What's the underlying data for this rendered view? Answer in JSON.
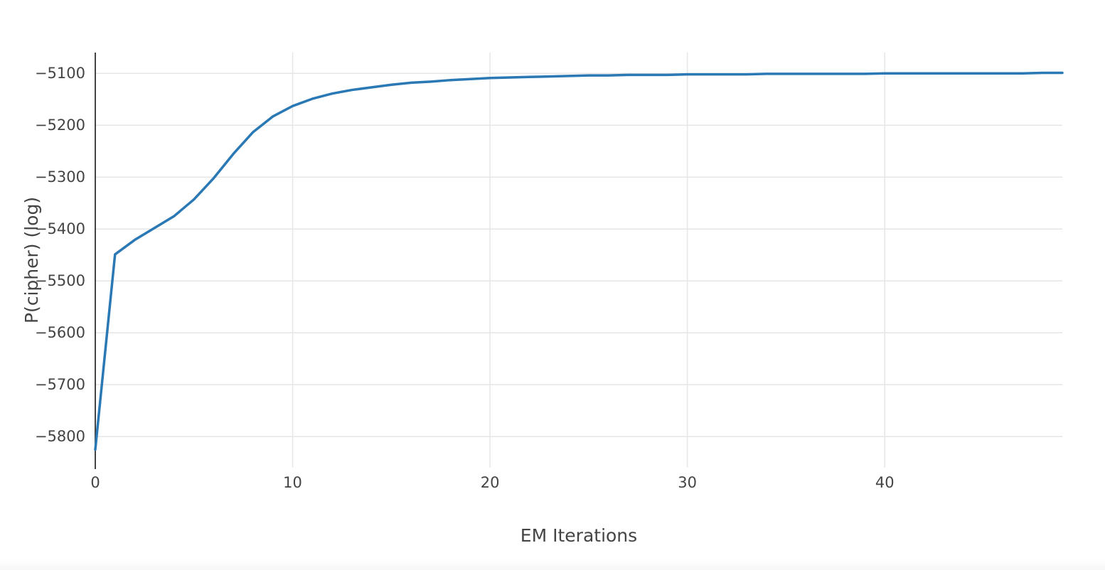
{
  "chart_data": {
    "type": "line",
    "title": "",
    "xlabel": "EM Iterations",
    "ylabel": "P(cipher) (log)",
    "xlim": [
      0,
      49
    ],
    "ylim": [
      -5860,
      -5060
    ],
    "x_ticks": [
      0,
      10,
      20,
      30,
      40
    ],
    "y_ticks": [
      -5100,
      -5200,
      -5300,
      -5400,
      -5500,
      -5600,
      -5700,
      -5800
    ],
    "x_tick_labels": [
      "0",
      "10",
      "20",
      "30",
      "40"
    ],
    "y_tick_labels": [
      "−5100",
      "−5200",
      "−5300",
      "−5400",
      "−5500",
      "−5600",
      "−5700",
      "−5800"
    ],
    "grid": true,
    "line_color": "#2a78b4",
    "series": [
      {
        "x": [
          0,
          1,
          2,
          3,
          4,
          5,
          6,
          7,
          8,
          9,
          10,
          11,
          12,
          13,
          14,
          15,
          16,
          17,
          18,
          19,
          20,
          21,
          22,
          23,
          24,
          25,
          26,
          27,
          28,
          29,
          30,
          31,
          32,
          33,
          34,
          35,
          36,
          37,
          38,
          39,
          40,
          41,
          42,
          43,
          44,
          45,
          46,
          47,
          48,
          49
        ],
        "values": [
          -5825,
          -5449,
          -5421,
          -5398,
          -5375,
          -5343,
          -5302,
          -5255,
          -5213,
          -5183,
          -5163,
          -5149,
          -5139,
          -5132,
          -5127,
          -5122,
          -5118,
          -5116,
          -5113,
          -5111,
          -5109,
          -5108,
          -5107,
          -5106,
          -5105,
          -5104,
          -5104,
          -5103,
          -5103,
          -5103,
          -5102,
          -5102,
          -5102,
          -5102,
          -5101,
          -5101,
          -5101,
          -5101,
          -5101,
          -5101,
          -5100,
          -5100,
          -5100,
          -5100,
          -5100,
          -5100,
          -5100,
          -5100,
          -5099,
          -5099
        ]
      }
    ]
  }
}
